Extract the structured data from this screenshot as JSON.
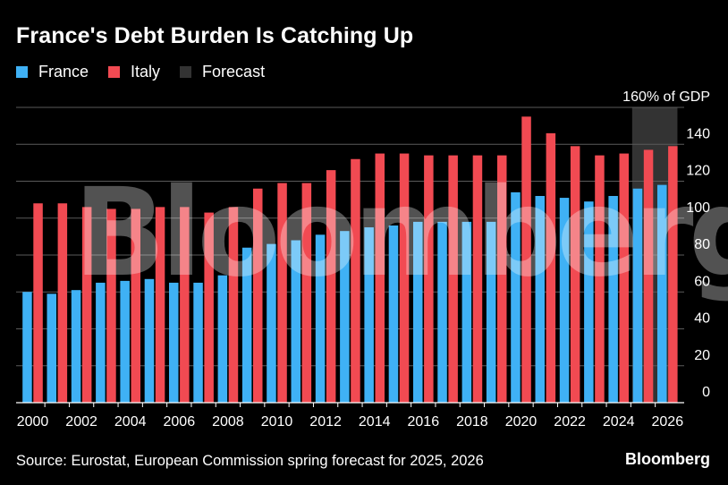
{
  "header": {
    "title": "France's Debt Burden Is Catching Up"
  },
  "legend": [
    {
      "label": "France",
      "color": "#3fb1f5"
    },
    {
      "label": "Italy",
      "color": "#f14a52"
    },
    {
      "label": "Forecast",
      "color": "#333333"
    }
  ],
  "footer": {
    "source": "Source: Eurostat, European Commission spring forecast for 2025, 2026",
    "brand": "Bloomberg"
  },
  "watermark": "Bloomberg",
  "chart_data": {
    "type": "bar",
    "title": "France's Debt Burden Is Catching Up",
    "ylabel": "160% of GDP",
    "xlabel": "",
    "ylim": [
      0,
      160
    ],
    "yticks": [
      "0",
      "20",
      "40",
      "60",
      "80",
      "100",
      "120",
      "140",
      "160% of GDP"
    ],
    "xticks": [
      "2000",
      "2002",
      "2004",
      "2006",
      "2008",
      "2010",
      "2012",
      "2014",
      "2016",
      "2018",
      "2020",
      "2022",
      "2024",
      "2026"
    ],
    "categories": [
      2000,
      2001,
      2002,
      2003,
      2004,
      2005,
      2006,
      2007,
      2008,
      2009,
      2010,
      2011,
      2012,
      2013,
      2014,
      2015,
      2016,
      2017,
      2018,
      2019,
      2020,
      2021,
      2022,
      2023,
      2024,
      2025,
      2026
    ],
    "forecast_range": [
      2025,
      2026
    ],
    "series": [
      {
        "name": "France",
        "color": "#3fb1f5",
        "values": [
          60,
          59,
          61,
          65,
          66,
          67,
          65,
          65,
          69,
          84,
          86,
          88,
          91,
          93,
          95,
          96,
          98,
          98,
          98,
          98,
          114,
          112,
          111,
          109,
          112,
          116,
          118
        ]
      },
      {
        "name": "Italy",
        "color": "#f14a52",
        "values": [
          108,
          108,
          106,
          105,
          105,
          106,
          106,
          103,
          106,
          116,
          119,
          119,
          126,
          132,
          135,
          135,
          134,
          134,
          134,
          134,
          155,
          146,
          139,
          134,
          135,
          137,
          139
        ]
      }
    ],
    "grid": true,
    "legend_position": "top-left"
  }
}
